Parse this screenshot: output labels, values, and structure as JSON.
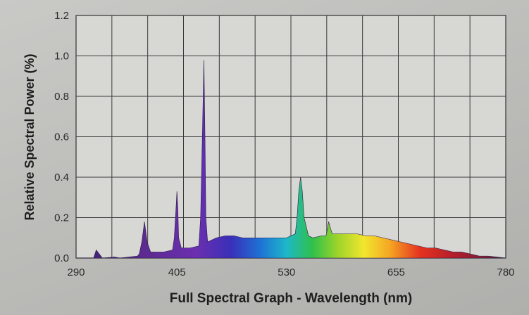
{
  "chart_data": {
    "type": "area",
    "title": "",
    "xlabel": "Full Spectral Graph - Wavelength (nm)",
    "ylabel": "Relative Spectral Power (%)",
    "xlim": [
      290,
      780
    ],
    "ylim": [
      0,
      1.2
    ],
    "x_ticks": [
      290,
      405,
      530,
      655,
      780
    ],
    "x_tick_labels": [
      "290",
      "405",
      "530",
      "655",
      "780"
    ],
    "y_ticks": [
      0.0,
      0.2,
      0.4,
      0.6,
      0.8,
      1.0,
      1.2
    ],
    "y_tick_labels": [
      "0.0",
      "0.2",
      "0.4",
      "0.6",
      "0.8",
      "1.0",
      "1.2"
    ],
    "grid": true,
    "legend": "none",
    "series": [
      {
        "x": [
          290,
          300,
          310,
          313,
          320,
          334,
          340,
          350,
          360,
          362,
          365,
          368,
          371,
          375,
          380,
          390,
          400,
          402,
          404,
          405,
          406,
          407,
          410,
          420,
          430,
          432,
          434,
          435.8,
          437,
          438,
          440,
          445,
          450,
          460,
          470,
          480,
          490,
          500,
          510,
          520,
          530,
          540,
          542,
          544,
          546,
          548,
          550,
          555,
          560,
          570,
          575,
          577,
          578,
          580,
          582,
          585,
          590,
          600,
          610,
          620,
          630,
          640,
          650,
          660,
          670,
          680,
          690,
          700,
          710,
          720,
          730,
          740,
          750,
          760,
          770,
          780
        ],
        "y": [
          0.0,
          0.0,
          0.0,
          0.04,
          0.0,
          0.005,
          0.0,
          0.005,
          0.01,
          0.02,
          0.08,
          0.18,
          0.08,
          0.03,
          0.03,
          0.03,
          0.04,
          0.1,
          0.25,
          0.33,
          0.25,
          0.1,
          0.05,
          0.05,
          0.06,
          0.2,
          0.6,
          0.98,
          0.6,
          0.2,
          0.08,
          0.09,
          0.1,
          0.11,
          0.11,
          0.1,
          0.1,
          0.1,
          0.1,
          0.1,
          0.1,
          0.12,
          0.2,
          0.33,
          0.4,
          0.33,
          0.2,
          0.11,
          0.1,
          0.11,
          0.11,
          0.15,
          0.18,
          0.15,
          0.12,
          0.12,
          0.12,
          0.12,
          0.12,
          0.11,
          0.11,
          0.1,
          0.09,
          0.08,
          0.07,
          0.06,
          0.05,
          0.05,
          0.04,
          0.03,
          0.03,
          0.02,
          0.01,
          0.01,
          0.005,
          0.0
        ]
      }
    ]
  }
}
